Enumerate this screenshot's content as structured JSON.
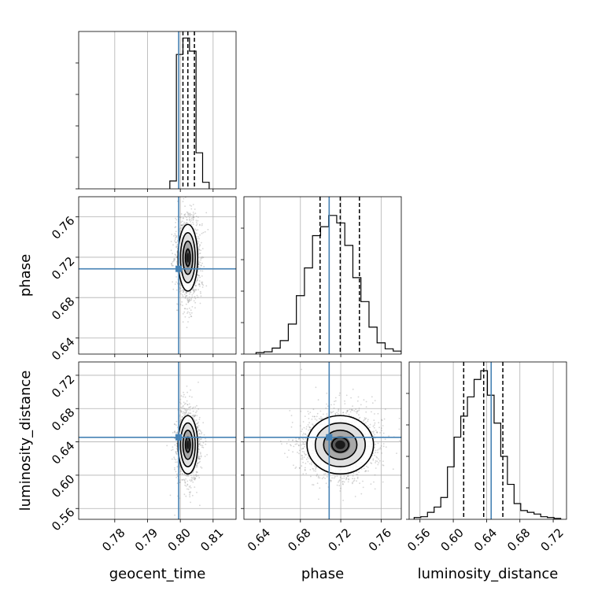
{
  "chart_data": {
    "type": "corner",
    "parameters": [
      {
        "name": "geocent_time",
        "label": "geocent_time",
        "range": [
          0.769,
          0.817
        ],
        "ticks": [
          0.78,
          0.79,
          0.8,
          0.81
        ],
        "tick_labels": [
          "0.78",
          "0.79",
          "0.80",
          "0.81"
        ],
        "truth": 0.7995,
        "quantiles": [
          0.8008,
          0.8023,
          0.8043
        ]
      },
      {
        "name": "phase",
        "label": "phase",
        "range": [
          0.624,
          0.78
        ],
        "ticks": [
          0.64,
          0.68,
          0.72,
          0.76
        ],
        "tick_labels": [
          "0.64",
          "0.68",
          "0.72",
          "0.76"
        ],
        "truth": 0.7085,
        "quantiles": [
          0.6995,
          0.7195,
          0.7385
        ]
      },
      {
        "name": "luminosity_distance",
        "label": "luminosity_distance",
        "range": [
          0.547,
          0.736
        ],
        "ticks": [
          0.56,
          0.6,
          0.64,
          0.68,
          0.72
        ],
        "tick_labels": [
          "0.56",
          "0.60",
          "0.64",
          "0.68",
          "0.72"
        ],
        "truth": 0.6455,
        "quantiles": [
          0.6125,
          0.6365,
          0.6595
        ]
      }
    ],
    "histograms": [
      {
        "parameter": "geocent_time",
        "bin_edges": [
          0.7968,
          0.7988,
          0.8008,
          0.8028,
          0.8048,
          0.8068,
          0.8088
        ],
        "counts": [
          12,
          205,
          230,
          210,
          55,
          10
        ],
        "y_max": 240
      },
      {
        "parameter": "phase",
        "bin_edges": [
          0.636,
          0.644,
          0.652,
          0.66,
          0.668,
          0.676,
          0.684,
          0.692,
          0.7,
          0.708,
          0.716,
          0.724,
          0.732,
          0.74,
          0.748,
          0.756,
          0.764,
          0.772,
          0.78
        ],
        "counts": [
          2,
          3,
          8,
          18,
          40,
          78,
          115,
          158,
          170,
          185,
          175,
          145,
          102,
          70,
          36,
          15,
          7,
          4
        ],
        "y_max": 210
      },
      {
        "parameter": "luminosity_distance",
        "bin_edges": [
          0.553,
          0.561,
          0.569,
          0.577,
          0.585,
          0.593,
          0.601,
          0.609,
          0.617,
          0.625,
          0.633,
          0.641,
          0.649,
          0.657,
          0.665,
          0.673,
          0.681,
          0.689,
          0.697,
          0.705,
          0.713,
          0.721,
          0.729
        ],
        "counts": [
          2,
          3,
          8,
          14,
          25,
          60,
          94,
          118,
          140,
          160,
          170,
          142,
          110,
          72,
          40,
          18,
          10,
          8,
          6,
          3,
          2,
          1
        ],
        "y_max": 180
      }
    ],
    "pairs": [
      {
        "x": "geocent_time",
        "y": "phase",
        "mean": [
          0.8023,
          0.7195
        ],
        "sigma": [
          0.0015,
          0.0165
        ],
        "contour_levels_sigma": [
          0.5,
          1.0,
          1.5,
          2.0
        ]
      },
      {
        "x": "geocent_time",
        "y": "luminosity_distance",
        "mean": [
          0.8023,
          0.6365
        ],
        "sigma": [
          0.0015,
          0.0175
        ],
        "contour_levels_sigma": [
          0.5,
          1.0,
          1.5,
          2.0
        ]
      },
      {
        "x": "phase",
        "y": "luminosity_distance",
        "mean": [
          0.7195,
          0.6365
        ],
        "sigma": [
          0.0165,
          0.0175
        ],
        "contour_levels_sigma": [
          0.5,
          1.0,
          1.5,
          2.0
        ]
      }
    ],
    "truth_color": "#4682b4",
    "quantile_color": "#000000",
    "histogram_color": "#000000",
    "scatter_color": "#888888",
    "grid": true,
    "xlabels": [
      "geocent_time",
      "phase",
      "luminosity_distance"
    ],
    "ylabels": [
      "",
      "phase",
      "luminosity_distance"
    ]
  }
}
